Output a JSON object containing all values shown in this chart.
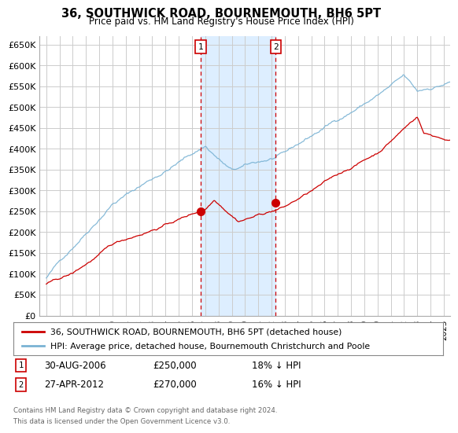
{
  "title": "36, SOUTHWICK ROAD, BOURNEMOUTH, BH6 5PT",
  "subtitle": "Price paid vs. HM Land Registry's House Price Index (HPI)",
  "ylabel_ticks": [
    "£0",
    "£50K",
    "£100K",
    "£150K",
    "£200K",
    "£250K",
    "£300K",
    "£350K",
    "£400K",
    "£450K",
    "£500K",
    "£550K",
    "£600K",
    "£650K"
  ],
  "ytick_values": [
    0,
    50000,
    100000,
    150000,
    200000,
    250000,
    300000,
    350000,
    400000,
    450000,
    500000,
    550000,
    600000,
    650000
  ],
  "ylim": [
    0,
    670000
  ],
  "xlim_start": 1994.5,
  "xlim_end": 2025.5,
  "sale1": {
    "year": 2006.66,
    "price": 250000,
    "label": "1",
    "date": "30-AUG-2006",
    "pct": "18%"
  },
  "sale2": {
    "year": 2012.32,
    "price": 270000,
    "label": "2",
    "date": "27-APR-2012",
    "pct": "16%"
  },
  "hpi_color": "#7ab3d4",
  "sale_color": "#cc0000",
  "shaded_region_color": "#ddeeff",
  "grid_color": "#cccccc",
  "background_color": "#ffffff",
  "legend_label_sale": "36, SOUTHWICK ROAD, BOURNEMOUTH, BH6 5PT (detached house)",
  "legend_label_hpi": "HPI: Average price, detached house, Bournemouth Christchurch and Poole",
  "footer1": "Contains HM Land Registry data © Crown copyright and database right 2024.",
  "footer2": "This data is licensed under the Open Government Licence v3.0.",
  "xticks": [
    1995,
    1996,
    1997,
    1998,
    1999,
    2000,
    2001,
    2002,
    2003,
    2004,
    2005,
    2006,
    2007,
    2008,
    2009,
    2010,
    2011,
    2012,
    2013,
    2014,
    2015,
    2016,
    2017,
    2018,
    2019,
    2020,
    2021,
    2022,
    2023,
    2024,
    2025
  ]
}
